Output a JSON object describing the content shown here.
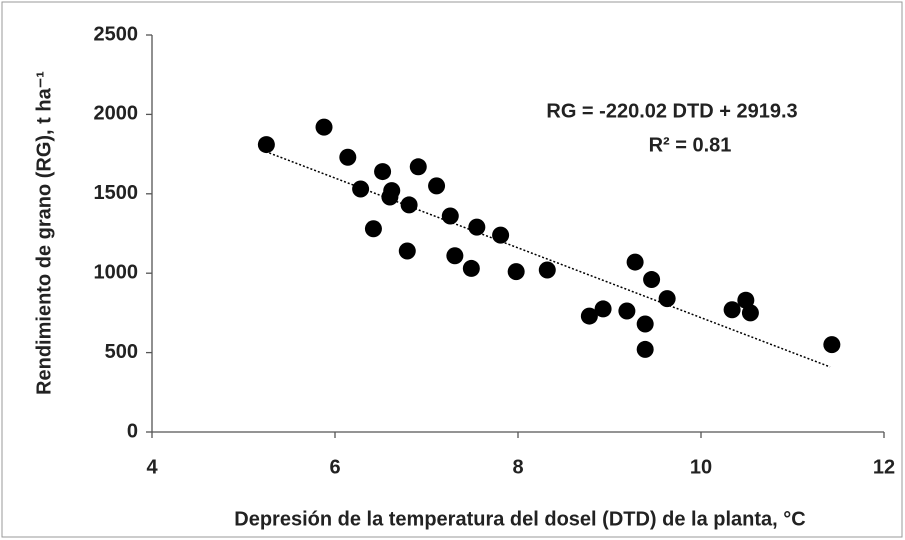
{
  "chart_data": {
    "type": "scatter",
    "xlabel": "Depresión de la temperatura del dosel (DTD) de la planta, °C",
    "ylabel": "Rendimiento de grano (RG), t ha⁻¹",
    "annotations": [
      "RG = -220.02 DTD + 2919.3",
      "R² = 0.81"
    ],
    "series": [
      {
        "color": "#000000",
        "x": [
          5.25,
          5.88,
          6.14,
          6.28,
          6.52,
          6.62,
          6.6,
          6.91,
          6.42,
          6.81,
          6.79,
          7.11,
          7.26,
          7.31,
          7.55,
          7.49,
          7.81,
          7.98,
          8.32,
          8.78,
          8.93,
          9.19,
          9.28,
          9.39,
          9.39,
          9.46,
          9.63,
          10.34,
          10.49,
          10.54,
          11.43
        ],
        "values": [
          1810,
          1920,
          1730,
          1530,
          1640,
          1520,
          1480,
          1670,
          1280,
          1430,
          1140,
          1550,
          1360,
          1110,
          1290,
          1030,
          1240,
          1010,
          1020,
          730,
          775,
          762,
          1070,
          680,
          520,
          960,
          840,
          770,
          830,
          750,
          550
        ]
      }
    ],
    "trendline": {
      "x": [
        5.2,
        11.41
      ],
      "values": [
        1775,
        410
      ],
      "color": "#000000"
    },
    "xlim": [
      4,
      12
    ],
    "xticks": [
      4,
      6,
      8,
      10,
      12
    ],
    "ylim": [
      0,
      2500
    ],
    "yticks": [
      0,
      500,
      1000,
      1500,
      2000,
      2500
    ],
    "grid": false
  }
}
